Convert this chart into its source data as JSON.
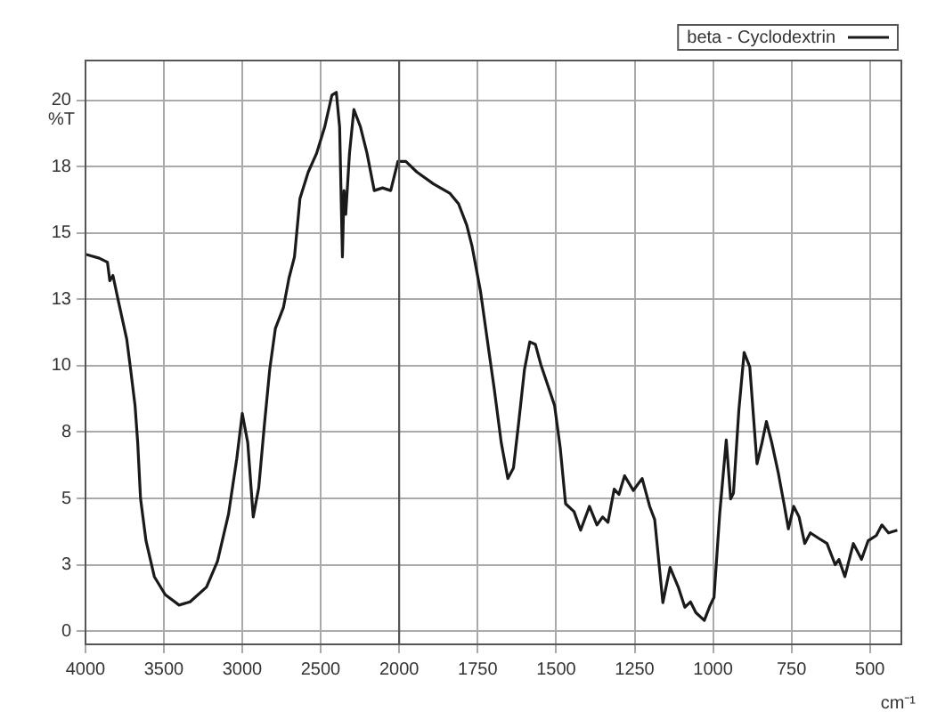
{
  "chart_data": [
    {
      "type": "line",
      "ylabel": "%T",
      "xlim": [
        4000,
        2000
      ],
      "xticks": [
        4000,
        3500,
        3000,
        2500
      ],
      "ylim": [
        -0.5,
        21.5
      ],
      "yticks": [
        0,
        {
          "value": 2.5,
          "label": "3"
        },
        5,
        {
          "value": 7.5,
          "label": "8"
        },
        10,
        {
          "value": 12.5,
          "label": "13"
        },
        15,
        {
          "value": 17.5,
          "label": "18"
        },
        20
      ],
      "grid": true,
      "marker": "none",
      "line_style": "solid",
      "x": [
        4000,
        3912,
        3860,
        3845,
        3825,
        3789,
        3737,
        3712,
        3684,
        3667,
        3649,
        3614,
        3561,
        3491,
        3403,
        3333,
        3228,
        3158,
        3088,
        3035,
        3000,
        2965,
        2930,
        2895,
        2860,
        2825,
        2789,
        2737,
        2702,
        2667,
        2632,
        2579,
        2526,
        2474,
        2428,
        2400,
        2379,
        2361,
        2351,
        2340,
        2316,
        2288,
        2246,
        2204,
        2158,
        2105,
        2053,
        2007,
        2000
      ],
      "series": [
        {
          "color": "#1a1a1a",
          "values": [
            14.2,
            14.05,
            13.9,
            13.2,
            13.4,
            12.4,
            11.0,
            9.85,
            8.5,
            7.1,
            5.0,
            3.4,
            2.05,
            1.37,
            0.98,
            1.1,
            1.66,
            2.63,
            4.4,
            6.5,
            8.2,
            7.1,
            4.3,
            5.4,
            7.7,
            9.85,
            11.4,
            12.2,
            13.3,
            14.1,
            16.3,
            17.3,
            18.0,
            19.0,
            20.2,
            20.3,
            19.0,
            14.1,
            16.6,
            15.7,
            18.0,
            19.65,
            19.0,
            18.0,
            16.6,
            16.7,
            16.6,
            17.7,
            17.7
          ]
        }
      ]
    },
    {
      "type": "line",
      "xlabel": "cm⁻¹",
      "tick_labels": "x",
      "xlim": [
        2000,
        400
      ],
      "xticks": [
        2000,
        1750,
        1500,
        1250,
        1000,
        750,
        500
      ],
      "ylim": [
        -0.5,
        21.5
      ],
      "grid": true,
      "legend": "top right",
      "marker": "none",
      "line_style": "solid",
      "x": [
        2000,
        1979,
        1944,
        1891,
        1839,
        1811,
        1785,
        1768,
        1741,
        1715,
        1697,
        1675,
        1654,
        1636,
        1619,
        1601,
        1584,
        1566,
        1549,
        1522,
        1505,
        1487,
        1470,
        1443,
        1422,
        1394,
        1370,
        1352,
        1335,
        1315,
        1300,
        1282,
        1254,
        1226,
        1202,
        1186,
        1160,
        1137,
        1111,
        1090,
        1072,
        1055,
        1028,
        1009,
        997,
        979,
        958,
        944,
        935,
        918,
        901,
        883,
        860,
        844,
        830,
        813,
        792,
        774,
        760,
        743,
        726,
        708,
        690,
        664,
        637,
        611,
        599,
        580,
        553,
        527,
        506,
        480,
        462,
        441,
        413
      ],
      "series": [
        {
          "name": "beta - Cyclodextrin",
          "color": "#1a1a1a",
          "values": [
            17.7,
            17.7,
            17.3,
            16.85,
            16.5,
            16.1,
            15.3,
            14.5,
            12.8,
            10.6,
            9.1,
            7.1,
            5.75,
            6.15,
            7.9,
            9.85,
            10.9,
            10.8,
            10.05,
            9.1,
            8.5,
            6.9,
            4.8,
            4.5,
            3.8,
            4.7,
            4.0,
            4.3,
            4.1,
            5.35,
            5.15,
            5.85,
            5.3,
            5.75,
            4.7,
            4.2,
            1.07,
            2.4,
            1.66,
            0.9,
            1.1,
            0.7,
            0.4,
            0.98,
            1.27,
            4.4,
            7.2,
            4.98,
            5.2,
            8.3,
            10.5,
            9.95,
            6.3,
            7.1,
            7.9,
            7.1,
            5.95,
            4.8,
            3.85,
            4.7,
            4.3,
            3.3,
            3.7,
            3.5,
            3.3,
            2.5,
            2.7,
            2.05,
            3.3,
            2.7,
            3.4,
            3.6,
            4.0,
            3.7,
            3.8
          ]
        }
      ]
    }
  ]
}
